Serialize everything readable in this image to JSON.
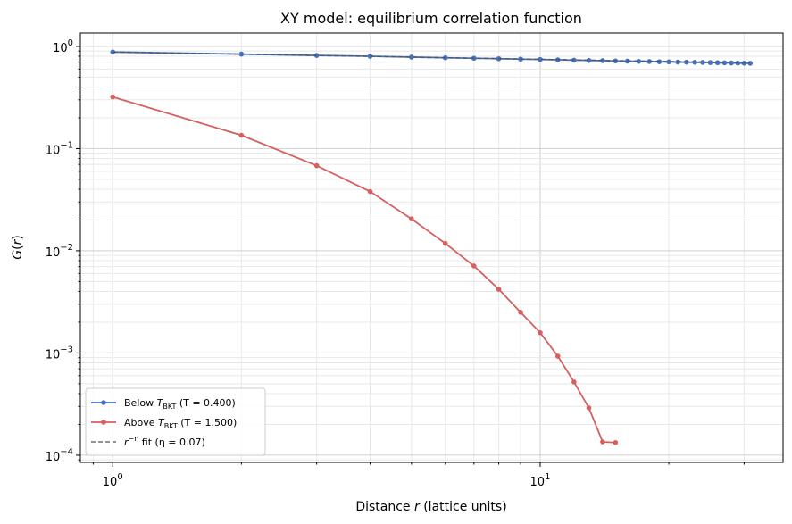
{
  "chart_data": {
    "type": "line",
    "title": "XY model: equilibrium correlation function",
    "xlabel": "Distance r (lattice units)",
    "ylabel": "G(r)",
    "xscale": "log",
    "yscale": "log",
    "xlim": [
      0.84,
      37
    ],
    "ylim": [
      8.5e-05,
      1.35
    ],
    "grid": true,
    "legend_position": "lower-left",
    "x_ticks": [
      {
        "value": 1,
        "label": "10^0"
      },
      {
        "value": 10,
        "label": "10^1"
      }
    ],
    "y_ticks": [
      {
        "value": 0.0001,
        "label": "10^-4"
      },
      {
        "value": 0.001,
        "label": "10^-3"
      },
      {
        "value": 0.01,
        "label": "10^-2"
      },
      {
        "value": 0.1,
        "label": "10^-1"
      },
      {
        "value": 1,
        "label": "10^0"
      }
    ],
    "series": [
      {
        "name": "Below T_BKT (T = 0.400)",
        "color": "#4472c4",
        "style": "solid-markers",
        "x": [
          1,
          2,
          3,
          4,
          5,
          6,
          7,
          8,
          9,
          10,
          11,
          12,
          13,
          14,
          15,
          16,
          17,
          18,
          19,
          20,
          21,
          22,
          23,
          24,
          25,
          26,
          27,
          28,
          29,
          30,
          31
        ],
        "y": [
          0.88,
          0.84,
          0.815,
          0.8,
          0.785,
          0.773,
          0.765,
          0.757,
          0.75,
          0.744,
          0.738,
          0.733,
          0.728,
          0.724,
          0.72,
          0.717,
          0.713,
          0.71,
          0.707,
          0.705,
          0.702,
          0.7,
          0.698,
          0.696,
          0.694,
          0.692,
          0.69,
          0.688,
          0.686,
          0.684,
          0.682
        ]
      },
      {
        "name": "Above T_BKT (T = 1.500)",
        "color": "#d65f5f",
        "style": "solid-markers",
        "x": [
          1,
          2,
          3,
          4,
          5,
          6,
          7,
          8,
          9,
          10,
          11,
          12,
          13,
          14,
          15
        ],
        "y": [
          0.32,
          0.135,
          0.068,
          0.038,
          0.0205,
          0.0118,
          0.0071,
          0.0042,
          0.0025,
          0.00158,
          0.00093,
          0.00052,
          0.00029,
          0.000135,
          0.000133
        ]
      },
      {
        "name": "r^-η fit (η = 0.07)",
        "color": "#555555",
        "style": "dashed",
        "x": [
          1,
          31
        ],
        "y": [
          0.88,
          0.69
        ]
      }
    ],
    "legend": [
      {
        "prefix": "Below ",
        "sym": "T",
        "sub": "BKT",
        "suffix": " (T = 0.400)"
      },
      {
        "prefix": "Above ",
        "sym": "T",
        "sub": "BKT",
        "suffix": " (T = 1.500)"
      },
      {
        "prefix": "",
        "sym": "r",
        "sup": "−η",
        "suffix": " fit (η = 0.07)"
      }
    ]
  }
}
